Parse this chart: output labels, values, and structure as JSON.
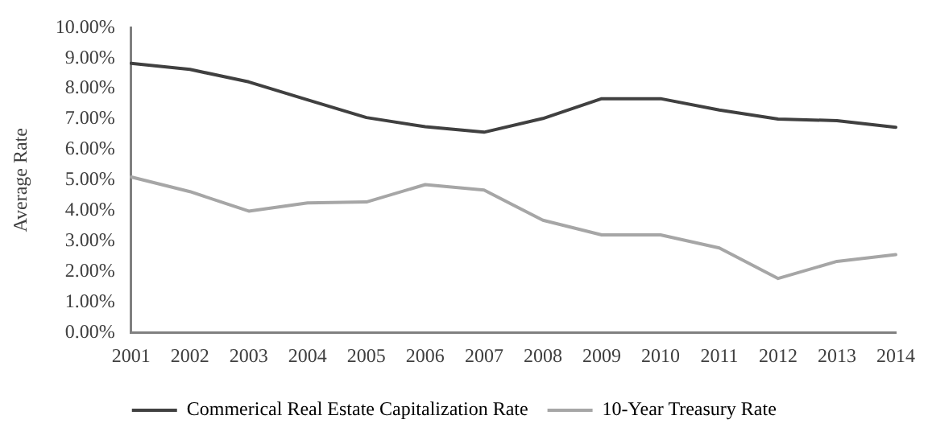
{
  "chart_data": {
    "type": "line",
    "ylabel": "Average Rate",
    "categories": [
      "2001",
      "2002",
      "2003",
      "2004",
      "2005",
      "2006",
      "2007",
      "2008",
      "2009",
      "2010",
      "2011",
      "2012",
      "2013",
      "2014"
    ],
    "series": [
      {
        "name": "Commerical Real Estate Capitalization Rate",
        "color": "#404040",
        "values": [
          8.83,
          8.63,
          8.22,
          7.63,
          7.05,
          6.75,
          6.57,
          7.02,
          7.67,
          7.67,
          7.3,
          7.0,
          6.95,
          6.73
        ]
      },
      {
        "name": "10-Year Treasury Rate",
        "color": "#a6a6a6",
        "values": [
          5.1,
          4.62,
          3.98,
          4.25,
          4.28,
          4.85,
          4.67,
          3.68,
          3.2,
          3.2,
          2.77,
          1.77,
          2.33,
          2.55
        ]
      }
    ],
    "ylim": [
      0,
      10
    ],
    "yticks": [
      {
        "value": 0,
        "label": "0.00%"
      },
      {
        "value": 1,
        "label": "1.00%"
      },
      {
        "value": 2,
        "label": "2.00%"
      },
      {
        "value": 3,
        "label": "3.00%"
      },
      {
        "value": 4,
        "label": "4.00%"
      },
      {
        "value": 5,
        "label": "5.00%"
      },
      {
        "value": 6,
        "label": "6.00%"
      },
      {
        "value": 7,
        "label": "7.00%"
      },
      {
        "value": 8,
        "label": "8.00%"
      },
      {
        "value": 9,
        "label": "9.00%"
      },
      {
        "value": 10,
        "label": "10.00%"
      }
    ],
    "grid": false,
    "legend": "bottom",
    "marker": "none",
    "line_style": "solid"
  }
}
